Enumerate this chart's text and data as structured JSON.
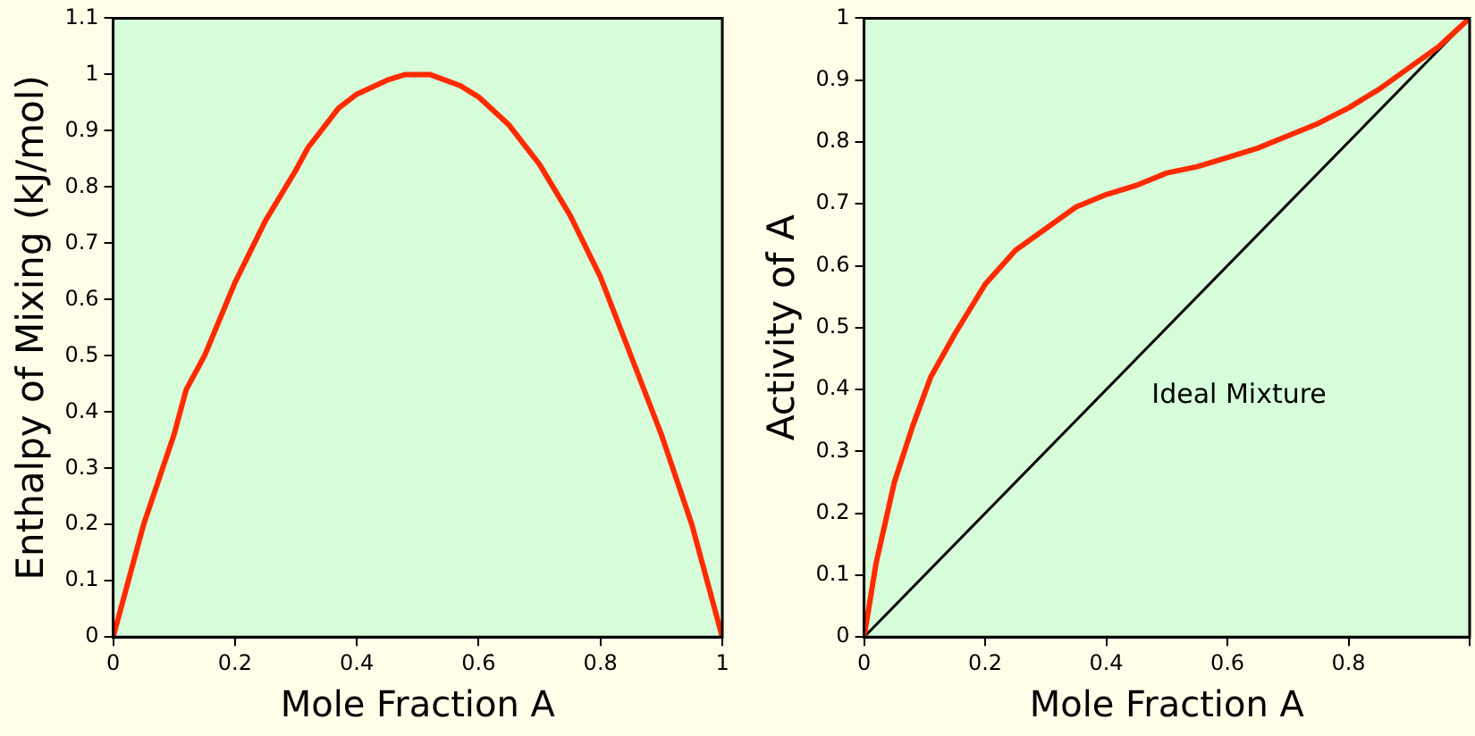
{
  "chart_data": [
    {
      "type": "line",
      "xlabel": "Mole Fraction A",
      "ylabel": "Enthalpy of Mixing (kJ/mol)",
      "xlim": [
        0,
        1
      ],
      "ylim": [
        0,
        1.1
      ],
      "xticks": [
        0,
        0.2,
        0.4,
        0.6,
        0.8,
        1
      ],
      "yticks": [
        0,
        0.1,
        0.2,
        0.3,
        0.4,
        0.5,
        0.6,
        0.7,
        0.8,
        0.9,
        1,
        1.1
      ],
      "grid": false,
      "legend": false,
      "marker": "none",
      "line_style": "solid",
      "x": [
        0,
        0.05,
        0.1,
        0.12,
        0.15,
        0.2,
        0.25,
        0.3,
        0.32,
        0.37,
        0.4,
        0.45,
        0.48,
        0.52,
        0.57,
        0.6,
        0.65,
        0.7,
        0.75,
        0.8,
        0.85,
        0.9,
        0.95,
        1
      ],
      "series": [
        {
          "color": "#ff2a00",
          "values": [
            0,
            0.2,
            0.36,
            0.44,
            0.5,
            0.63,
            0.74,
            0.83,
            0.87,
            0.94,
            0.965,
            0.99,
            1,
            1,
            0.98,
            0.96,
            0.91,
            0.84,
            0.75,
            0.64,
            0.5,
            0.36,
            0.2,
            0
          ]
        }
      ]
    },
    {
      "type": "line",
      "xlabel": "Mole Fraction A",
      "ylabel": "Activity of A",
      "xlim": [
        0,
        1
      ],
      "ylim": [
        0,
        1
      ],
      "xticks": [
        0,
        0.2,
        0.4,
        0.6,
        0.8,
        {
          "value": 1,
          "label": null
        }
      ],
      "yticks": [
        0,
        0.1,
        0.2,
        0.3,
        0.4,
        0.5,
        0.6,
        0.7,
        0.8,
        0.9,
        1
      ],
      "grid": false,
      "legend": false,
      "marker": "none",
      "line_style": "solid",
      "annotations": [
        "Ideal Mixture"
      ],
      "series": [
        {
          "color": "#ff2a00",
          "x": [
            0,
            0.02,
            0.05,
            0.08,
            0.11,
            0.15,
            0.2,
            0.25,
            0.3,
            0.35,
            0.4,
            0.45,
            0.5,
            0.55,
            0.6,
            0.65,
            0.7,
            0.75,
            0.8,
            0.85,
            0.9,
            0.95,
            1
          ],
          "values": [
            0,
            0.12,
            0.25,
            0.34,
            0.42,
            0.49,
            0.57,
            0.625,
            0.66,
            0.695,
            0.715,
            0.73,
            0.75,
            0.76,
            0.775,
            0.79,
            0.81,
            0.83,
            0.855,
            0.885,
            0.92,
            0.955,
            1
          ]
        },
        {
          "color": "#000000",
          "x": [
            0,
            1
          ],
          "values": [
            0,
            1
          ]
        }
      ]
    }
  ]
}
